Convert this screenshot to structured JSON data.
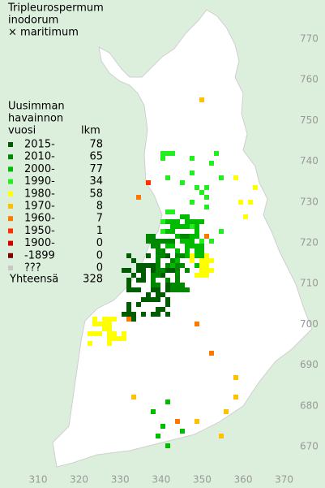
{
  "title": [
    "Tripleurospermum",
    "inodorum",
    "× maritimum"
  ],
  "legend": {
    "heading": [
      "Uusimman",
      "havainnon",
      "vuosi"
    ],
    "count_heading": "lkm",
    "entries": [
      {
        "label": "2015-",
        "count": 78,
        "color": "#005c00"
      },
      {
        "label": "2010-",
        "count": 65,
        "color": "#008800"
      },
      {
        "label": "2000-",
        "count": 77,
        "color": "#00bb00"
      },
      {
        "label": "1990-",
        "count": 34,
        "color": "#22ee22"
      },
      {
        "label": "1980-",
        "count": 58,
        "color": "#ffff00"
      },
      {
        "label": "1970-",
        "count": 8,
        "color": "#ffc000"
      },
      {
        "label": "1960-",
        "count": 7,
        "color": "#ff7800"
      },
      {
        "label": "1950-",
        "count": 1,
        "color": "#ff3000"
      },
      {
        "label": "1900-",
        "count": 0,
        "color": "#d00000"
      },
      {
        "label": "-1899",
        "count": 0,
        "color": "#800000"
      },
      {
        "label": "???",
        "count": 0,
        "color": "#c8c8c8"
      }
    ],
    "total_label": "Yhteensä",
    "total": 328
  },
  "x_grid_labels": [
    310,
    320,
    330,
    340,
    350,
    360,
    370
  ],
  "y_grid_labels": [
    770,
    760,
    750,
    740,
    730,
    720,
    710,
    700,
    690,
    680,
    670
  ]
}
